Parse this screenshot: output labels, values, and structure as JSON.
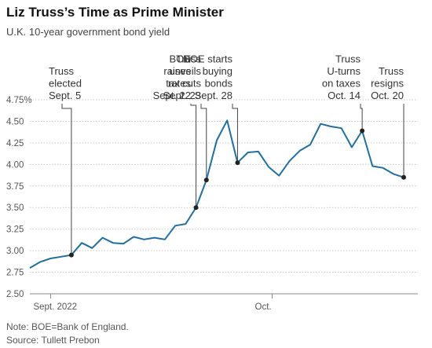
{
  "header": {
    "title": "Liz Truss’s Time as Prime Minister",
    "subtitle": "U.K. 10-year government bond yield"
  },
  "footer": {
    "note": "Note: BOE=Bank of England.",
    "source": "Source: Tullett Prebon"
  },
  "colors": {
    "line": "#1f6fa0",
    "marker": "#222222",
    "grid": "#c8c8c8",
    "annotation_line": "#444444"
  },
  "chart_data": {
    "type": "line",
    "title": "Liz Truss’s Time as Prime Minister",
    "subtitle": "U.K. 10-year government bond yield",
    "ylim": [
      2.5,
      4.75
    ],
    "yticks": [
      {
        "value": 2.5,
        "label": "2.50"
      },
      {
        "value": 2.75,
        "label": "2.75"
      },
      {
        "value": 3.0,
        "label": "3.00"
      },
      {
        "value": 3.25,
        "label": "3.25"
      },
      {
        "value": 3.5,
        "label": "3.50"
      },
      {
        "value": 3.75,
        "label": "3.75"
      },
      {
        "value": 4.0,
        "label": "4.00"
      },
      {
        "value": 4.25,
        "label": "4.25"
      },
      {
        "value": 4.5,
        "label": "4.50"
      },
      {
        "value": 4.75,
        "label": "4.75%"
      }
    ],
    "xticks": [
      {
        "value": "2022-09-01",
        "label": "Sept. 2022"
      },
      {
        "value": "2022-10-01",
        "label": "Oct."
      }
    ],
    "grid": true,
    "series": [
      {
        "points": [
          {
            "x": "2022-08-30",
            "y": 2.8
          },
          {
            "x": "2022-08-31",
            "y": 2.87
          },
          {
            "x": "2022-09-01",
            "y": 2.91
          },
          {
            "x": "2022-09-02",
            "y": 2.93
          },
          {
            "x": "2022-09-05",
            "y": 2.95
          },
          {
            "x": "2022-09-06",
            "y": 3.09
          },
          {
            "x": "2022-09-07",
            "y": 3.03
          },
          {
            "x": "2022-09-08",
            "y": 3.15
          },
          {
            "x": "2022-09-09",
            "y": 3.09
          },
          {
            "x": "2022-09-12",
            "y": 3.08
          },
          {
            "x": "2022-09-13",
            "y": 3.16
          },
          {
            "x": "2022-09-14",
            "y": 3.13
          },
          {
            "x": "2022-09-15",
            "y": 3.15
          },
          {
            "x": "2022-09-16",
            "y": 3.13
          },
          {
            "x": "2022-09-19",
            "y": 3.29
          },
          {
            "x": "2022-09-20",
            "y": 3.31
          },
          {
            "x": "2022-09-21",
            "y": 3.5
          },
          {
            "x": "2022-09-22",
            "y": 3.82
          },
          {
            "x": "2022-09-23",
            "y": 4.28
          },
          {
            "x": "2022-09-26",
            "y": 4.51
          },
          {
            "x": "2022-09-27",
            "y": 4.02
          },
          {
            "x": "2022-09-28",
            "y": 4.14
          },
          {
            "x": "2022-09-29",
            "y": 4.15
          },
          {
            "x": "2022-09-30",
            "y": 3.97
          },
          {
            "x": "2022-10-03",
            "y": 3.87
          },
          {
            "x": "2022-10-04",
            "y": 4.04
          },
          {
            "x": "2022-10-05",
            "y": 4.16
          },
          {
            "x": "2022-10-06",
            "y": 4.23
          },
          {
            "x": "2022-10-07",
            "y": 4.47
          },
          {
            "x": "2022-10-10",
            "y": 4.44
          },
          {
            "x": "2022-10-11",
            "y": 4.42
          },
          {
            "x": "2022-10-12",
            "y": 4.2
          },
          {
            "x": "2022-10-13",
            "y": 4.39
          },
          {
            "x": "2022-10-14",
            "y": 3.98
          },
          {
            "x": "2022-10-17",
            "y": 3.96
          },
          {
            "x": "2022-10-18",
            "y": 3.89
          },
          {
            "x": "2022-10-19",
            "y": 3.85
          }
        ]
      }
    ],
    "annotations": [
      {
        "x": "2022-09-05",
        "y": 2.95,
        "lines": [
          "Truss",
          "elected",
          "Sept. 5"
        ]
      },
      {
        "x": "2022-09-21",
        "y": 3.5,
        "lines": [
          "BOE",
          "raises",
          "rates",
          "Sept. 22"
        ]
      },
      {
        "x": "2022-09-22",
        "y": 3.82,
        "lines": [
          "Truss",
          "unveils",
          "tax cuts",
          "Sept. 23"
        ]
      },
      {
        "x": "2022-09-27",
        "y": 4.02,
        "lines": [
          "BOE starts",
          "buying",
          "bonds",
          "Sept. 28"
        ]
      },
      {
        "x": "2022-10-13",
        "y": 4.39,
        "lines": [
          "Truss",
          "U-turns",
          "on taxes",
          "Oct. 14"
        ]
      },
      {
        "x": "2022-10-19",
        "y": 3.85,
        "lines": [
          "Truss",
          "resigns",
          "Oct. 20"
        ]
      }
    ]
  }
}
